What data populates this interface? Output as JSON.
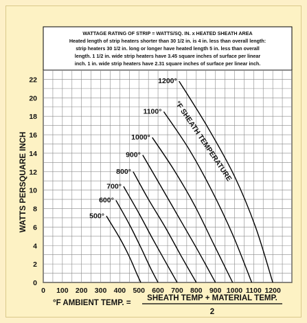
{
  "chart_data": {
    "type": "line",
    "note_lines": [
      "WATTAGE RATING OF STRIP = WATTS/SQ. IN. x HEATED SHEATH AREA",
      "Heated length of strip heaters shorter than 30 1/2 in. is 4 in. less than overall length:",
      "strip heaters 30 1/2 in. long or longer have heated length 5 in. less than overall",
      "length. 1 1/2 in. wide strip heaters have 3.45 square inches of surface per linear",
      "inch. 1 in. wide strip heaters have 2.31 square inches of surface per linear inch."
    ],
    "ylabel": "WATTS PERSQUARE INCH",
    "xlabel_prefix": "°F AMBIENT TEMP.  =",
    "xlabel_numerator": "SHEATH TEMP + MATERIAL TEMP.",
    "xlabel_denominator": "2",
    "series_annotation": "°F SHEATH TEMPERATURE",
    "xlim": [
      0,
      1300
    ],
    "ylim": [
      0,
      23
    ],
    "x_ticks": [
      0,
      100,
      200,
      300,
      400,
      500,
      600,
      700,
      800,
      900,
      1000,
      1100,
      1200
    ],
    "y_ticks": [
      0,
      2,
      4,
      6,
      8,
      10,
      12,
      14,
      16,
      18,
      20,
      22
    ],
    "grid": true,
    "series": [
      {
        "name": "500°",
        "x": [
          330,
          400,
          450,
          490,
          510
        ],
        "y": [
          7.2,
          4.8,
          2.8,
          0.9,
          0
        ]
      },
      {
        "name": "600°",
        "x": [
          380,
          450,
          510,
          560,
          600
        ],
        "y": [
          8.9,
          6.3,
          3.8,
          1.6,
          0
        ]
      },
      {
        "name": "700°",
        "x": [
          420,
          500,
          570,
          640,
          700
        ],
        "y": [
          10.4,
          7.5,
          4.8,
          2.2,
          0
        ]
      },
      {
        "name": "800°",
        "x": [
          470,
          550,
          640,
          720,
          800
        ],
        "y": [
          12.0,
          9.0,
          5.9,
          2.9,
          0
        ]
      },
      {
        "name": "900°",
        "x": [
          520,
          610,
          710,
          810,
          900
        ],
        "y": [
          13.8,
          10.6,
          7.0,
          3.4,
          0
        ]
      },
      {
        "name": "1000°",
        "x": [
          570,
          680,
          790,
          890,
          990
        ],
        "y": [
          15.7,
          12.3,
          8.4,
          4.2,
          0
        ]
      },
      {
        "name": "1100°",
        "x": [
          630,
          760,
          880,
          990,
          1090
        ],
        "y": [
          18.5,
          14.5,
          10.0,
          5.2,
          0
        ]
      },
      {
        "name": "1200°",
        "x": [
          710,
          860,
          1000,
          1110,
          1200
        ],
        "y": [
          21.8,
          16.8,
          11.5,
          6.0,
          0
        ]
      }
    ]
  }
}
